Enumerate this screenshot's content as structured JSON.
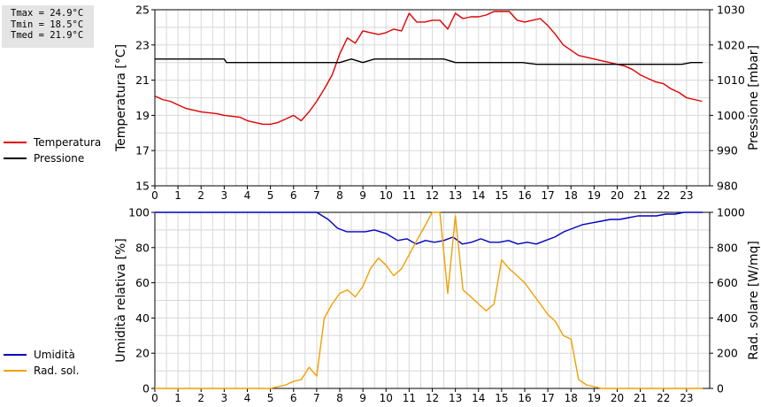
{
  "stats": {
    "tmax": "Tmax = 24.9°C",
    "tmin": "Tmin = 18.5°C",
    "tmed": "Tmed = 21.9°C"
  },
  "legend_top": [
    {
      "label": "Temperatura",
      "color": "#e00000"
    },
    {
      "label": "Pressione",
      "color": "#000000"
    }
  ],
  "legend_bottom": [
    {
      "label": "Umidità",
      "color": "#0000c0"
    },
    {
      "label": "Rad. sol.",
      "color": "#f0a000"
    }
  ],
  "chart_data": [
    {
      "type": "line",
      "xlabel": "",
      "ylabel": "Temperatura [°C]",
      "y2label": "Pressione [mbar]",
      "xticks": [
        "0",
        "1",
        "2",
        "3",
        "4",
        "5",
        "6",
        "7",
        "8",
        "9",
        "10",
        "11",
        "12",
        "13",
        "14",
        "15",
        "16",
        "17",
        "18",
        "19",
        "20",
        "21",
        "22",
        "23"
      ],
      "xlim": [
        0,
        24
      ],
      "ylim": [
        15,
        25
      ],
      "yticks": [
        15,
        17,
        19,
        21,
        23,
        25
      ],
      "y2lim": [
        980,
        1030
      ],
      "y2ticks": [
        980,
        990,
        1000,
        1010,
        1020,
        1030
      ],
      "grid": true,
      "series": [
        {
          "name": "Temperatura",
          "color": "#e00000",
          "axis": "left",
          "x": [
            0,
            0.33,
            0.67,
            1,
            1.33,
            1.67,
            2,
            2.33,
            2.67,
            3,
            3.33,
            3.67,
            4,
            4.33,
            4.67,
            5,
            5.33,
            5.67,
            6,
            6.33,
            6.67,
            7,
            7.33,
            7.67,
            8,
            8.33,
            8.67,
            9,
            9.33,
            9.67,
            10,
            10.33,
            10.67,
            11,
            11.33,
            11.67,
            12,
            12.33,
            12.67,
            13,
            13.33,
            13.67,
            14,
            14.33,
            14.67,
            15,
            15.33,
            15.67,
            16,
            16.33,
            16.67,
            17,
            17.33,
            17.67,
            18,
            18.33,
            18.67,
            19,
            19.33,
            19.67,
            20,
            20.33,
            20.67,
            21,
            21.33,
            21.67,
            22,
            22.33,
            22.67,
            23,
            23.33,
            23.67
          ],
          "y": [
            20.1,
            19.9,
            19.8,
            19.6,
            19.4,
            19.3,
            19.2,
            19.15,
            19.1,
            19.0,
            18.95,
            18.9,
            18.7,
            18.6,
            18.5,
            18.5,
            18.6,
            18.8,
            19.0,
            18.7,
            19.2,
            19.8,
            20.5,
            21.3,
            22.5,
            23.4,
            23.1,
            23.8,
            23.7,
            23.6,
            23.7,
            23.9,
            23.8,
            24.8,
            24.3,
            24.3,
            24.4,
            24.4,
            23.9,
            24.8,
            24.5,
            24.6,
            24.6,
            24.7,
            24.9,
            24.9,
            24.9,
            24.4,
            24.3,
            24.4,
            24.5,
            24.1,
            23.6,
            23.0,
            22.7,
            22.4,
            22.3,
            22.2,
            22.1,
            22.0,
            21.9,
            21.8,
            21.6,
            21.3,
            21.1,
            20.9,
            20.8,
            20.5,
            20.3,
            20.0,
            19.9,
            19.8
          ]
        },
        {
          "name": "Pressione",
          "color": "#000000",
          "axis": "right",
          "x": [
            0,
            3,
            3.1,
            8,
            8.5,
            9,
            9.5,
            12.5,
            13,
            15.9,
            16.5,
            22.8,
            23.2,
            23.7
          ],
          "y": [
            1016,
            1016,
            1015,
            1015,
            1016,
            1015,
            1016,
            1016,
            1015,
            1015,
            1014.5,
            1014.5,
            1015,
            1015
          ]
        }
      ]
    },
    {
      "type": "line",
      "xlabel": "",
      "ylabel": "Umidità relativa [%]",
      "y2label": "Rad. solare [W/mq]",
      "xticks": [
        "0",
        "1",
        "2",
        "3",
        "4",
        "5",
        "6",
        "7",
        "8",
        "9",
        "10",
        "11",
        "12",
        "13",
        "14",
        "15",
        "16",
        "17",
        "18",
        "19",
        "20",
        "21",
        "22",
        "23"
      ],
      "xlim": [
        0,
        24
      ],
      "ylim": [
        0,
        100
      ],
      "yticks": [
        0,
        20,
        40,
        60,
        80,
        100
      ],
      "y2lim": [
        0,
        1000
      ],
      "y2ticks": [
        0,
        200,
        400,
        600,
        800,
        1000
      ],
      "grid": true,
      "series": [
        {
          "name": "Umidità",
          "color": "#0000c0",
          "axis": "left",
          "x": [
            0,
            7,
            7.5,
            7.9,
            8.3,
            8.7,
            9.1,
            9.5,
            10,
            10.5,
            10.9,
            11.3,
            11.7,
            12.1,
            12.5,
            12.9,
            13.3,
            13.7,
            14.1,
            14.5,
            14.9,
            15.3,
            15.7,
            16.1,
            16.5,
            16.9,
            17.3,
            17.7,
            18.1,
            18.5,
            18.9,
            19.3,
            19.7,
            20.1,
            20.5,
            20.9,
            21.3,
            21.7,
            22.1,
            22.5,
            22.9,
            23.3,
            23.7
          ],
          "y": [
            100,
            100,
            96,
            91,
            89,
            89,
            89,
            90,
            88,
            84,
            85,
            82,
            84,
            83,
            84,
            86,
            82,
            83,
            85,
            83,
            83,
            84,
            82,
            83,
            82,
            84,
            86,
            89,
            91,
            93,
            94,
            95,
            96,
            96,
            97,
            98,
            98,
            98,
            99,
            99,
            100,
            100,
            100
          ]
        },
        {
          "name": "Rad. sol.",
          "color": "#f0a000",
          "axis": "right",
          "x": [
            0,
            5,
            5.33,
            5.67,
            6,
            6.33,
            6.67,
            7,
            7.33,
            7.67,
            8,
            8.33,
            8.67,
            9,
            9.33,
            9.67,
            10,
            10.33,
            10.67,
            11,
            11.33,
            11.67,
            12,
            12.33,
            12.67,
            13,
            13.33,
            13.67,
            14,
            14.33,
            14.67,
            15,
            15.33,
            15.67,
            16,
            16.33,
            16.67,
            17,
            17.33,
            17.67,
            18,
            18.33,
            18.67,
            19,
            19.33,
            19.67,
            20,
            20.33,
            23.7
          ],
          "y": [
            0,
            0,
            10,
            20,
            40,
            50,
            120,
            70,
            400,
            480,
            540,
            560,
            520,
            580,
            680,
            740,
            700,
            640,
            680,
            760,
            840,
            920,
            1000,
            1000,
            540,
            980,
            560,
            520,
            480,
            440,
            480,
            730,
            680,
            640,
            600,
            540,
            480,
            420,
            380,
            300,
            280,
            50,
            20,
            10,
            0,
            0,
            0,
            0,
            0
          ]
        }
      ]
    }
  ]
}
